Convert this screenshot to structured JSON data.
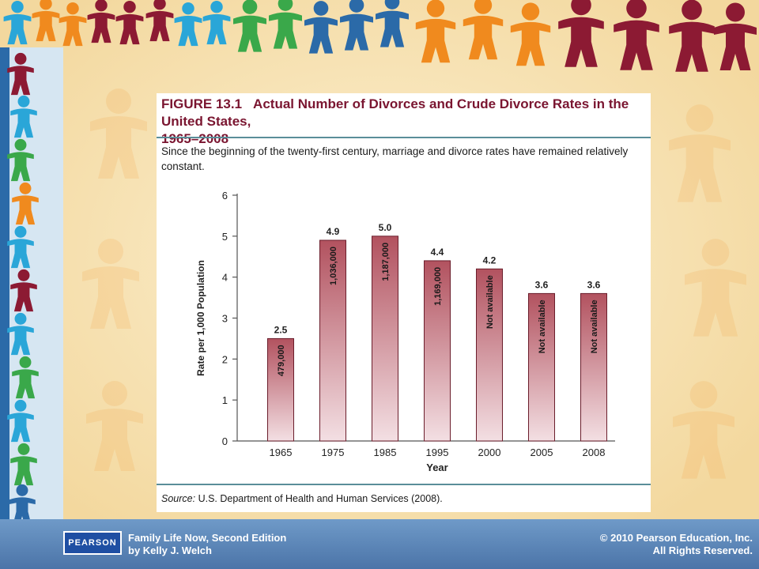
{
  "figure": {
    "number": "FIGURE 13.1",
    "title_line1": "Actual Number of Divorces and Crude Divorce Rates in the United States,",
    "title_line2": "1965–2008",
    "caption": "Since the beginning of the twenty-first century, marriage and divorce rates have remained relatively constant.",
    "source_label": "Source:",
    "source_text": " U.S. Department of Health and Human Services (2008)."
  },
  "chart_data": {
    "type": "bar",
    "categories": [
      "1965",
      "1975",
      "1985",
      "1995",
      "2000",
      "2005",
      "2008"
    ],
    "values": [
      2.5,
      4.9,
      5.0,
      4.4,
      4.2,
      3.6,
      3.6
    ],
    "value_labels": [
      "2.5",
      "4.9",
      "5.0",
      "4.4",
      "4.2",
      "3.6",
      "3.6"
    ],
    "inner_labels": [
      "479,000",
      "1,036,000",
      "1,187,000",
      "1,169,000",
      "Not available",
      "Not available",
      "Not available"
    ],
    "xlabel": "Year",
    "ylabel": "Rate per 1,000 Population",
    "ylim": [
      0,
      6
    ],
    "yticks": [
      0,
      1,
      2,
      3,
      4,
      5,
      6
    ],
    "grid": false,
    "colors": {
      "bar_top": "#b2525f",
      "bar_bottom": "#f3dfe3",
      "bar_edge": "#6b1e2c"
    }
  },
  "footer": {
    "publisher_logo": "PEARSON",
    "book_title": "Family Life Now, Second Edition",
    "author": "by Kelly J. Welch",
    "copyright": "© 2010 Pearson Education, Inc.",
    "rights": "All Rights Reserved."
  },
  "colors": {
    "title": "#7a1530",
    "rule": "#5a8e99",
    "footer": "#5a82b6",
    "background": "#f6e2b8"
  }
}
